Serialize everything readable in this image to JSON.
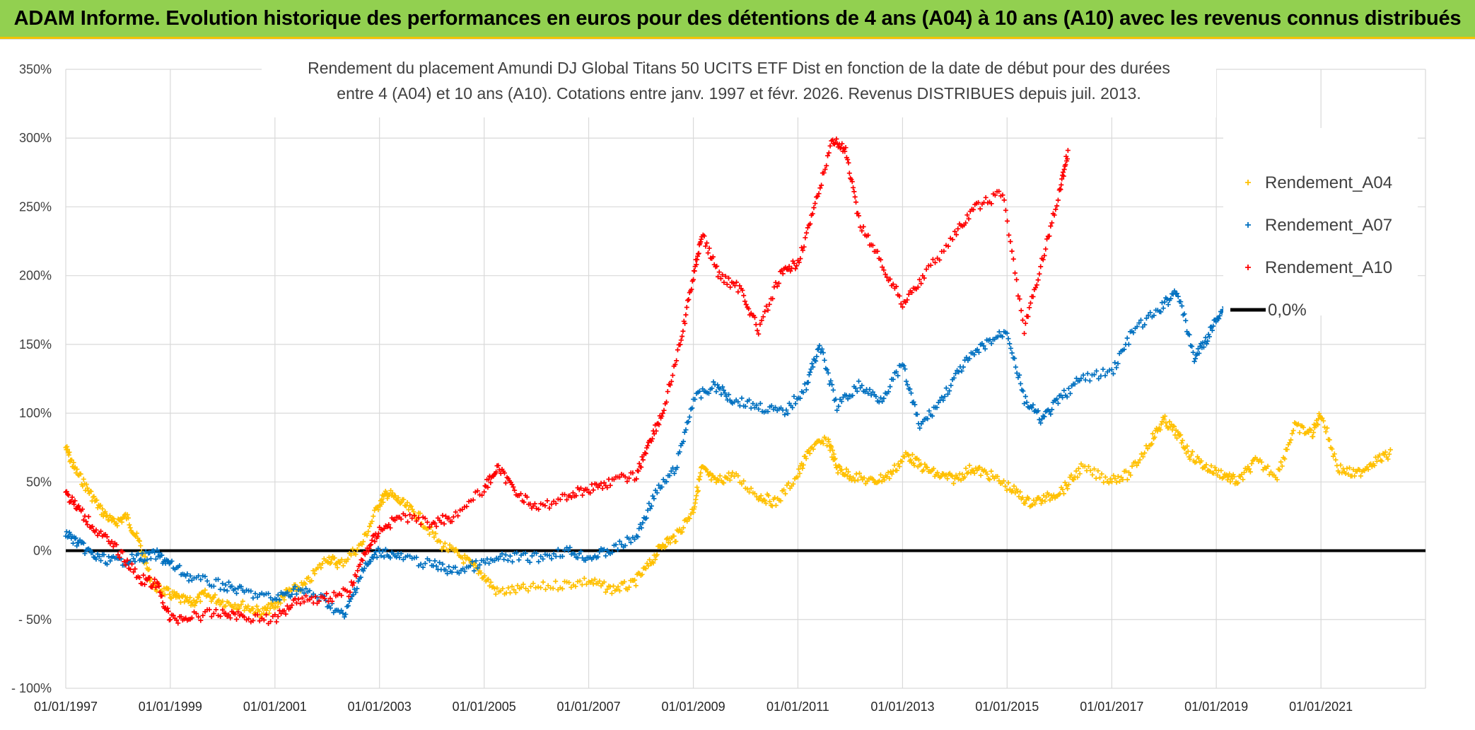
{
  "header": {
    "title": "ADAM Informe. Evolution historique des performances en euros pour des détentions de 4 ans (A04) à 10 ans (A10) avec les revenus connus distribués",
    "background": "#92d050",
    "accent": "#f2c200"
  },
  "chart_data": {
    "type": "scatter",
    "title_lines": [
      "Rendement du placement Amundi DJ Global Titans 50 UCITS ETF Dist en fonction de la date de début pour des durées",
      "entre 4 (A04) et 10 ans (A10). Cotations entre janv. 1997 et févr. 2026. Revenus DISTRIBUES depuis juil. 2013."
    ],
    "xlabel": "",
    "ylabel": "",
    "xlim": [
      "1997-01-01",
      "2023-01-01"
    ],
    "ylim": [
      -100,
      350
    ],
    "y_ticks": [
      350,
      300,
      250,
      200,
      150,
      100,
      50,
      0,
      -50,
      -100
    ],
    "y_tick_labels": [
      "350%",
      "300%",
      "250%",
      "200%",
      "150%",
      "100%",
      "50%",
      "0%",
      "- 50%",
      "- 100%"
    ],
    "x_ticks": [
      "1997-01-01",
      "1999-01-01",
      "2001-01-01",
      "2003-01-01",
      "2005-01-01",
      "2007-01-01",
      "2009-01-01",
      "2011-01-01",
      "2013-01-01",
      "2015-01-01",
      "2017-01-01",
      "2019-01-01",
      "2021-01-01"
    ],
    "x_tick_labels": [
      "01/01/1997",
      "01/01/1999",
      "01/01/2001",
      "01/01/2003",
      "01/01/2005",
      "01/01/2007",
      "01/01/2009",
      "01/01/2011",
      "01/01/2013",
      "01/01/2015",
      "01/01/2017",
      "01/01/2019",
      "01/01/2021"
    ],
    "grid": true,
    "legend_position": "right",
    "series": [
      {
        "name": "Rendement_A04",
        "color": "#ffc000",
        "marker": "plus",
        "points": [
          [
            "1997-01-01",
            75
          ],
          [
            "1997-03-01",
            60
          ],
          [
            "1997-06-01",
            45
          ],
          [
            "1997-09-01",
            30
          ],
          [
            "1997-12-01",
            20
          ],
          [
            "1998-03-01",
            25
          ],
          [
            "1998-06-01",
            5
          ],
          [
            "1998-09-01",
            -25
          ],
          [
            "1998-12-01",
            -30
          ],
          [
            "1999-03-01",
            -35
          ],
          [
            "1999-06-01",
            -38
          ],
          [
            "1999-09-01",
            -32
          ],
          [
            "2000-01-01",
            -37
          ],
          [
            "2000-06-01",
            -40
          ],
          [
            "2000-10-01",
            -45
          ],
          [
            "2001-01-01",
            -40
          ],
          [
            "2001-04-01",
            -30
          ],
          [
            "2001-08-01",
            -25
          ],
          [
            "2002-01-01",
            -5
          ],
          [
            "2002-04-01",
            -10
          ],
          [
            "2002-09-01",
            5
          ],
          [
            "2003-01-01",
            35
          ],
          [
            "2003-03-01",
            42
          ],
          [
            "2003-06-01",
            35
          ],
          [
            "2003-10-01",
            25
          ],
          [
            "2004-03-01",
            5
          ],
          [
            "2004-08-01",
            -5
          ],
          [
            "2004-12-01",
            -15
          ],
          [
            "2005-04-01",
            -30
          ],
          [
            "2005-10-01",
            -28
          ],
          [
            "2006-06-01",
            -25
          ],
          [
            "2007-01-01",
            -22
          ],
          [
            "2007-06-01",
            -28
          ],
          [
            "2007-11-01",
            -25
          ],
          [
            "2008-03-01",
            -10
          ],
          [
            "2008-06-01",
            5
          ],
          [
            "2008-09-01",
            10
          ],
          [
            "2009-01-01",
            30
          ],
          [
            "2009-03-01",
            60
          ],
          [
            "2009-06-01",
            50
          ],
          [
            "2009-10-01",
            55
          ],
          [
            "2010-04-01",
            40
          ],
          [
            "2010-08-01",
            35
          ],
          [
            "2011-01-01",
            55
          ],
          [
            "2011-04-01",
            75
          ],
          [
            "2011-08-01",
            80
          ],
          [
            "2011-10-01",
            60
          ],
          [
            "2012-01-01",
            55
          ],
          [
            "2012-06-01",
            50
          ],
          [
            "2012-10-01",
            55
          ],
          [
            "2013-02-01",
            70
          ],
          [
            "2013-05-01",
            62
          ],
          [
            "2013-09-01",
            55
          ],
          [
            "2014-01-01",
            52
          ],
          [
            "2014-05-01",
            60
          ],
          [
            "2014-09-01",
            55
          ],
          [
            "2015-02-01",
            45
          ],
          [
            "2015-06-01",
            35
          ],
          [
            "2015-10-01",
            38
          ],
          [
            "2016-02-01",
            45
          ],
          [
            "2016-06-01",
            60
          ],
          [
            "2016-12-01",
            52
          ],
          [
            "2017-05-01",
            55
          ],
          [
            "2017-10-01",
            80
          ],
          [
            "2018-01-01",
            95
          ],
          [
            "2018-04-01",
            85
          ],
          [
            "2018-07-01",
            70
          ],
          [
            "2018-11-01",
            60
          ],
          [
            "2019-03-01",
            55
          ],
          [
            "2019-06-01",
            50
          ],
          [
            "2019-10-01",
            65
          ],
          [
            "2020-03-01",
            55
          ],
          [
            "2020-07-01",
            90
          ],
          [
            "2020-11-01",
            85
          ],
          [
            "2021-01-01",
            100
          ],
          [
            "2021-05-01",
            60
          ],
          [
            "2021-09-01",
            55
          ],
          [
            "2022-01-01",
            65
          ],
          [
            "2022-05-01",
            70
          ]
        ]
      },
      {
        "name": "Rendement_A07",
        "color": "#0070c0",
        "marker": "plus",
        "points": [
          [
            "1997-01-01",
            13
          ],
          [
            "1997-04-01",
            5
          ],
          [
            "1997-08-01",
            -5
          ],
          [
            "1998-01-01",
            -8
          ],
          [
            "1998-06-01",
            -5
          ],
          [
            "1998-10-01",
            -3
          ],
          [
            "1999-01-01",
            -10
          ],
          [
            "1999-06-01",
            -20
          ],
          [
            "2000-01-01",
            -25
          ],
          [
            "2000-06-01",
            -30
          ],
          [
            "2001-01-01",
            -35
          ],
          [
            "2001-06-01",
            -28
          ],
          [
            "2001-12-01",
            -35
          ],
          [
            "2002-05-01",
            -48
          ],
          [
            "2002-09-01",
            -15
          ],
          [
            "2003-01-01",
            0
          ],
          [
            "2003-06-01",
            -5
          ],
          [
            "2004-01-01",
            -10
          ],
          [
            "2004-06-01",
            -15
          ],
          [
            "2004-12-01",
            -10
          ],
          [
            "2005-06-01",
            -5
          ],
          [
            "2006-01-01",
            -5
          ],
          [
            "2006-08-01",
            0
          ],
          [
            "2007-01-01",
            -5
          ],
          [
            "2007-06-01",
            0
          ],
          [
            "2007-12-01",
            10
          ],
          [
            "2008-04-01",
            40
          ],
          [
            "2008-09-01",
            60
          ],
          [
            "2009-01-01",
            110
          ],
          [
            "2009-06-01",
            120
          ],
          [
            "2009-10-01",
            110
          ],
          [
            "2010-04-01",
            105
          ],
          [
            "2010-10-01",
            100
          ],
          [
            "2011-03-01",
            120
          ],
          [
            "2011-06-01",
            150
          ],
          [
            "2011-10-01",
            105
          ],
          [
            "2012-03-01",
            120
          ],
          [
            "2012-08-01",
            110
          ],
          [
            "2013-01-01",
            135
          ],
          [
            "2013-05-01",
            90
          ],
          [
            "2013-10-01",
            110
          ],
          [
            "2014-03-01",
            135
          ],
          [
            "2014-08-01",
            150
          ],
          [
            "2015-01-01",
            160
          ],
          [
            "2015-05-01",
            110
          ],
          [
            "2015-09-01",
            95
          ],
          [
            "2016-01-01",
            110
          ],
          [
            "2016-06-01",
            125
          ],
          [
            "2017-01-01",
            130
          ],
          [
            "2017-06-01",
            160
          ],
          [
            "2017-12-01",
            175
          ],
          [
            "2018-04-01",
            190
          ],
          [
            "2018-08-01",
            140
          ],
          [
            "2018-11-01",
            155
          ],
          [
            "2019-02-01",
            175
          ],
          [
            "2019-06-01",
            180
          ]
        ]
      },
      {
        "name": "Rendement_A10",
        "color": "#ff0000",
        "marker": "plus",
        "points": [
          [
            "1997-01-01",
            42
          ],
          [
            "1997-04-01",
            30
          ],
          [
            "1997-08-01",
            15
          ],
          [
            "1998-01-01",
            0
          ],
          [
            "1998-06-01",
            -20
          ],
          [
            "1998-10-01",
            -25
          ],
          [
            "1999-01-01",
            -50
          ],
          [
            "1999-06-01",
            -48
          ],
          [
            "2000-01-01",
            -45
          ],
          [
            "2000-06-01",
            -48
          ],
          [
            "2001-01-01",
            -50
          ],
          [
            "2001-06-01",
            -35
          ],
          [
            "2001-12-01",
            -35
          ],
          [
            "2002-06-01",
            -30
          ],
          [
            "2002-10-01",
            0
          ],
          [
            "2003-01-01",
            15
          ],
          [
            "2003-06-01",
            25
          ],
          [
            "2004-01-01",
            20
          ],
          [
            "2004-06-01",
            25
          ],
          [
            "2005-01-01",
            45
          ],
          [
            "2005-04-01",
            60
          ],
          [
            "2005-08-01",
            45
          ],
          [
            "2006-01-01",
            30
          ],
          [
            "2006-08-01",
            40
          ],
          [
            "2007-01-01",
            45
          ],
          [
            "2007-06-01",
            50
          ],
          [
            "2007-12-01",
            55
          ],
          [
            "2008-03-01",
            80
          ],
          [
            "2008-06-01",
            100
          ],
          [
            "2008-10-01",
            150
          ],
          [
            "2009-01-01",
            200
          ],
          [
            "2009-03-01",
            230
          ],
          [
            "2009-07-01",
            200
          ],
          [
            "2009-12-01",
            190
          ],
          [
            "2010-04-01",
            160
          ],
          [
            "2010-09-01",
            200
          ],
          [
            "2011-01-01",
            210
          ],
          [
            "2011-05-01",
            250
          ],
          [
            "2011-09-01",
            300
          ],
          [
            "2011-12-01",
            290
          ],
          [
            "2012-03-01",
            240
          ],
          [
            "2012-08-01",
            210
          ],
          [
            "2013-01-01",
            180
          ],
          [
            "2013-06-01",
            200
          ],
          [
            "2014-01-01",
            230
          ],
          [
            "2014-06-01",
            250
          ],
          [
            "2014-12-01",
            260
          ],
          [
            "2015-05-01",
            160
          ],
          [
            "2015-09-01",
            210
          ],
          [
            "2016-01-01",
            260
          ],
          [
            "2016-03-01",
            290
          ]
        ]
      },
      {
        "name": "0,0%",
        "color": "#000000",
        "marker": "line",
        "points": [
          [
            "1997-01-01",
            0
          ],
          [
            "2023-01-01",
            0
          ]
        ]
      }
    ]
  }
}
